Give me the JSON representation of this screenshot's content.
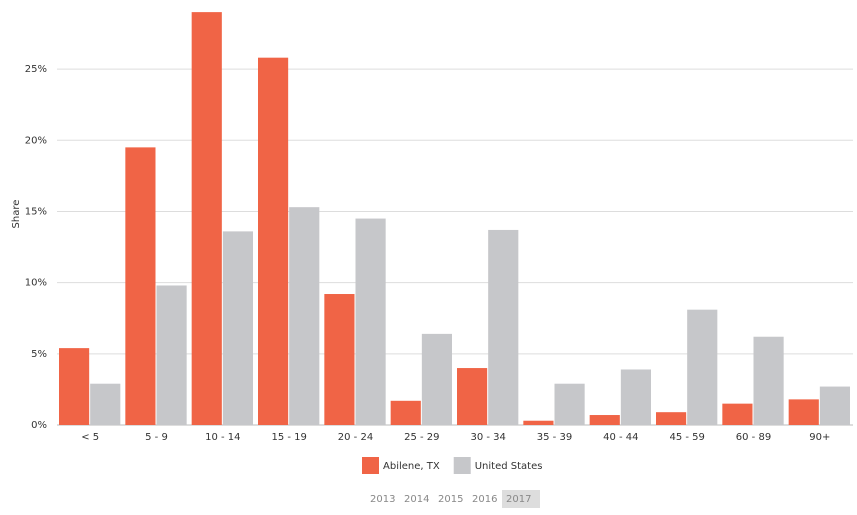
{
  "chart_data": {
    "type": "bar",
    "y_label": "Share",
    "categories": [
      "< 5",
      "5 - 9",
      "10 - 14",
      "15 - 19",
      "20 - 24",
      "25 - 29",
      "30 - 34",
      "35 - 39",
      "40 - 44",
      "45 - 59",
      "60 - 89",
      "90+"
    ],
    "series": [
      {
        "name": "Abilene, TX",
        "color": "#f06446",
        "values": [
          5.4,
          19.5,
          29.0,
          25.8,
          9.2,
          1.7,
          4.0,
          0.3,
          0.7,
          0.9,
          1.5,
          1.8
        ]
      },
      {
        "name": "United States",
        "color": "#c6c7ca",
        "values": [
          2.9,
          9.8,
          13.6,
          15.3,
          14.5,
          6.4,
          13.7,
          2.9,
          3.9,
          8.1,
          6.2,
          2.7
        ]
      }
    ],
    "ylim": [
      0,
      29.5
    ],
    "yticks": [
      {
        "value": 0,
        "label": "0%"
      },
      {
        "value": 5,
        "label": "5%"
      },
      {
        "value": 10,
        "label": "10%"
      },
      {
        "value": 15,
        "label": "15%"
      },
      {
        "value": 20,
        "label": "20%"
      },
      {
        "value": 25,
        "label": "25%"
      }
    ],
    "grid": true
  },
  "year_selector": {
    "years": [
      "2013",
      "2014",
      "2015",
      "2016",
      "2017"
    ],
    "selected": "2017"
  }
}
